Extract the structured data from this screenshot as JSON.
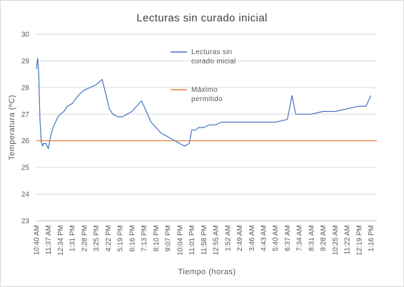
{
  "chart_data": {
    "type": "line",
    "title": "Lecturas sin curado inicial",
    "xlabel": "Tiempo (horas)",
    "ylabel": "Temperatura (ºC)",
    "ylim": [
      23,
      30
    ],
    "y_ticks": [
      "23",
      "24",
      "25",
      "26",
      "27",
      "28",
      "29",
      "30"
    ],
    "x_ticks": [
      "10:40 AM",
      "11:37 AM",
      "12:34 PM",
      "1:31 PM",
      "2:28 PM",
      "3:25 PM",
      "4:22 PM",
      "5:19 PM",
      "6:16 PM",
      "7:13 PM",
      "8:10 PM",
      "9:07 PM",
      "10:04 PM",
      "11:01 PM",
      "11:58 PM",
      "12:55 AM",
      "1:52 AM",
      "2:49 AM",
      "3:46 AM",
      "4:43 AM",
      "5:40 AM",
      "6:37 AM",
      "7:34 AM",
      "8:31 AM",
      "9:28 AM",
      "10:25 AM",
      "11:22 AM",
      "12:19 PM",
      "1:16 PM"
    ],
    "grid": "horizontal",
    "legend": "right",
    "series": [
      {
        "name": "Lecturas sin curado inicial",
        "color": "#4472C4",
        "x_index": [
          0,
          0.1,
          0.2,
          0.3,
          0.4,
          0.5,
          0.6,
          0.8,
          1.0,
          1.2,
          1.4,
          1.6,
          1.8,
          2.0,
          2.3,
          2.6,
          3.0,
          3.5,
          4.0,
          4.5,
          5.0,
          5.5,
          5.9,
          6.1,
          6.4,
          6.8,
          7.2,
          7.6,
          8.0,
          8.4,
          8.8,
          9.2,
          9.6,
          10.0,
          10.4,
          10.8,
          11.2,
          11.6,
          12.0,
          12.4,
          12.8,
          13.0,
          13.3,
          13.6,
          14.0,
          14.5,
          15.0,
          15.5,
          16.0,
          17.0,
          18.0,
          19.0,
          20.0,
          21.0,
          21.4,
          21.7,
          22.0,
          23.0,
          24.0,
          25.0,
          26.0,
          27.0,
          27.6,
          28.0
        ],
        "values": [
          28.7,
          29.1,
          28.5,
          26.8,
          26.0,
          25.8,
          25.9,
          25.9,
          25.7,
          26.2,
          26.5,
          26.7,
          26.9,
          27.0,
          27.1,
          27.3,
          27.4,
          27.7,
          27.9,
          28.0,
          28.1,
          28.3,
          27.6,
          27.2,
          27.0,
          26.9,
          26.9,
          27.0,
          27.1,
          27.3,
          27.5,
          27.1,
          26.7,
          26.5,
          26.3,
          26.2,
          26.1,
          26.0,
          25.9,
          25.8,
          25.9,
          26.4,
          26.4,
          26.5,
          26.5,
          26.6,
          26.6,
          26.7,
          26.7,
          26.7,
          26.7,
          26.7,
          26.7,
          26.8,
          27.7,
          27.0,
          27.0,
          27.0,
          27.1,
          27.1,
          27.2,
          27.3,
          27.3,
          27.7
        ]
      },
      {
        "name": "Máximo permitido",
        "color": "#ED7D31",
        "x_index": [
          0,
          28.5
        ],
        "values": [
          26,
          26
        ]
      }
    ],
    "legend_entries": [
      {
        "line1": "Lecturas sin",
        "line2": "curado inicial",
        "color": "#4472C4"
      },
      {
        "line1": "Máximo",
        "line2": "permitido",
        "color": "#ED7D31"
      }
    ]
  }
}
